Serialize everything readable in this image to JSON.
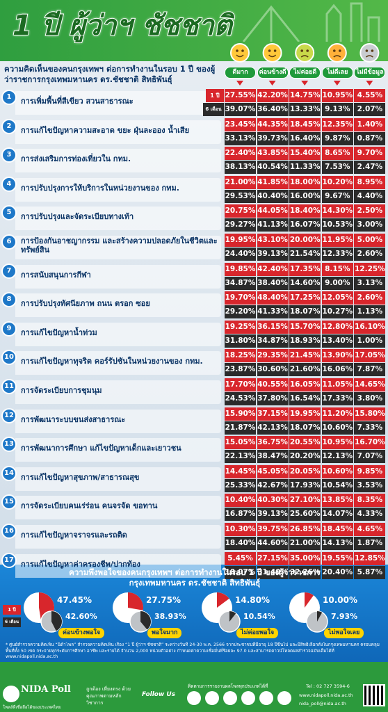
{
  "header": {
    "title": "1 ปี ผู้ว่าฯ ชัชชาติ"
  },
  "table": {
    "subtitle": "ความคิดเห็นของคนกรุงเทพฯ ต่อการทำงานในรอบ 1 ปี ของผู้ว่าราชการกรุงเทพมหานคร ดร.ชัชชาติ สิทธิพันธุ์",
    "columns": [
      "ดีมาก",
      "ค่อนข้างดี",
      "ไม่ค่อยดี",
      "ไม่ดีเลย",
      "ไม่มีข้อมูล"
    ],
    "period_labels": [
      "1 ปี",
      "6 เดือน"
    ],
    "rows": [
      {
        "no": "1",
        "topic": "การเพิ่มพื้นที่สีเขียว สวนสาธารณะ",
        "year": [
          "27.55%",
          "42.20%",
          "14.75%",
          "10.95%",
          "4.55%"
        ],
        "half": [
          "39.07%",
          "36.40%",
          "13.33%",
          "9.13%",
          "2.07%"
        ]
      },
      {
        "no": "2",
        "topic": "การแก้ไขปัญหาความสะอาด ขยะ ฝุ่นละออง น้ำเสีย",
        "year": [
          "23.45%",
          "44.35%",
          "18.45%",
          "12.35%",
          "1.40%"
        ],
        "half": [
          "33.13%",
          "39.73%",
          "16.40%",
          "9.87%",
          "0.87%"
        ]
      },
      {
        "no": "3",
        "topic": "การส่งเสริมการท่องเที่ยวใน กทม.",
        "year": [
          "22.40%",
          "43.85%",
          "15.40%",
          "8.65%",
          "9.70%"
        ],
        "half": [
          "38.13%",
          "40.54%",
          "11.33%",
          "7.53%",
          "2.47%"
        ]
      },
      {
        "no": "4",
        "topic": "การปรับปรุงการให้บริการในหน่วยงานของ กทม.",
        "year": [
          "21.00%",
          "41.85%",
          "18.00%",
          "10.20%",
          "8.95%"
        ],
        "half": [
          "29.53%",
          "40.40%",
          "16.00%",
          "9.67%",
          "4.40%"
        ]
      },
      {
        "no": "5",
        "topic": "การปรับปรุงและจัดระเบียบทางเท้า",
        "year": [
          "20.75%",
          "44.05%",
          "18.40%",
          "14.30%",
          "2.50%"
        ],
        "half": [
          "29.27%",
          "41.13%",
          "16.07%",
          "10.53%",
          "3.00%"
        ]
      },
      {
        "no": "6",
        "topic": "การป้องกันอาชญากรรม และสร้างความปลอดภัยในชีวิตและทรัพย์สิน",
        "year": [
          "19.95%",
          "43.10%",
          "20.00%",
          "11.95%",
          "5.00%"
        ],
        "half": [
          "24.40%",
          "39.13%",
          "21.54%",
          "12.33%",
          "2.60%"
        ]
      },
      {
        "no": "7",
        "topic": "การสนับสนุนการกีฬา",
        "year": [
          "19.85%",
          "42.40%",
          "17.35%",
          "8.15%",
          "12.25%"
        ],
        "half": [
          "34.87%",
          "38.40%",
          "14.60%",
          "9.00%",
          "3.13%"
        ]
      },
      {
        "no": "8",
        "topic": "การปรับปรุงทัศนียภาพ ถนน ตรอก ซอย",
        "year": [
          "19.70%",
          "48.40%",
          "17.25%",
          "12.05%",
          "2.60%"
        ],
        "half": [
          "29.20%",
          "41.33%",
          "18.07%",
          "10.27%",
          "1.13%"
        ]
      },
      {
        "no": "9",
        "topic": "การแก้ไขปัญหาน้ำท่วม",
        "year": [
          "19.25%",
          "36.15%",
          "15.70%",
          "12.80%",
          "16.10%"
        ],
        "half": [
          "31.80%",
          "34.87%",
          "18.93%",
          "13.40%",
          "1.00%"
        ]
      },
      {
        "no": "10",
        "topic": "การแก้ไขปัญหาทุจริต คอร์รัปชันในหน่วยงานของ กทม.",
        "year": [
          "18.25%",
          "29.35%",
          "21.45%",
          "13.90%",
          "17.05%"
        ],
        "half": [
          "23.87%",
          "30.60%",
          "21.60%",
          "16.06%",
          "7.87%"
        ]
      },
      {
        "no": "11",
        "topic": "การจัดระเบียบการชุมนุม",
        "year": [
          "17.70%",
          "40.55%",
          "16.05%",
          "11.05%",
          "14.65%"
        ],
        "half": [
          "24.53%",
          "37.80%",
          "16.54%",
          "17.33%",
          "3.80%"
        ]
      },
      {
        "no": "12",
        "topic": "การพัฒนาระบบขนส่งสาธารณะ",
        "year": [
          "15.90%",
          "37.15%",
          "19.95%",
          "11.20%",
          "15.80%"
        ],
        "half": [
          "21.87%",
          "42.13%",
          "18.07%",
          "10.60%",
          "7.33%"
        ]
      },
      {
        "no": "13",
        "topic": "การพัฒนาการศึกษา แก้ไขปัญหาเด็กและเยาวชน",
        "year": [
          "15.05%",
          "36.75%",
          "20.55%",
          "10.95%",
          "16.70%"
        ],
        "half": [
          "22.13%",
          "38.47%",
          "20.20%",
          "12.13%",
          "7.07%"
        ]
      },
      {
        "no": "14",
        "topic": "การแก้ไขปัญหาสุขภาพ/สาธารณสุข",
        "year": [
          "14.45%",
          "45.05%",
          "20.05%",
          "10.60%",
          "9.85%"
        ],
        "half": [
          "25.33%",
          "42.67%",
          "17.93%",
          "10.54%",
          "3.53%"
        ]
      },
      {
        "no": "15",
        "topic": "การจัดระเบียบคนเร่ร่อน คนจรจัด ขอทาน",
        "year": [
          "10.40%",
          "40.30%",
          "27.10%",
          "13.85%",
          "8.35%"
        ],
        "half": [
          "16.87%",
          "39.13%",
          "25.60%",
          "14.07%",
          "4.33%"
        ]
      },
      {
        "no": "16",
        "topic": "การแก้ไขปัญหาจราจรและรถติด",
        "year": [
          "10.30%",
          "39.75%",
          "26.85%",
          "18.45%",
          "4.65%"
        ],
        "half": [
          "18.40%",
          "44.60%",
          "21.00%",
          "14.13%",
          "1.87%"
        ]
      },
      {
        "no": "17",
        "topic": "การแก้ไขปัญหาค่าครองชีพ/ปากท้อง",
        "year": [
          "5.45%",
          "27.15%",
          "35.00%",
          "19.55%",
          "12.85%"
        ],
        "half": [
          "10.07%",
          "31.40%",
          "32.26%",
          "20.40%",
          "5.87%"
        ]
      }
    ]
  },
  "satisfaction": {
    "title": "ความพึงพอใจของคนกรุงเทพฯ ต่อการทำงานในรอบ 1 ปี ของผู้ว่าราชการกรุงเทพมหานคร ดร.ชัชชาติ สิทธิพันธุ์",
    "period_labels": [
      "1 ปี",
      "6 เดือน"
    ],
    "items": [
      {
        "name": "ค่อนข้างพอใจ",
        "values": [
          47.45,
          42.6
        ],
        "value_labels": [
          "47.45%",
          "42.60%"
        ]
      },
      {
        "name": "พอใจมาก",
        "values": [
          27.75,
          38.93
        ],
        "value_labels": [
          "27.75%",
          "38.93%"
        ]
      },
      {
        "name": "ไม่ค่อยพอใจ",
        "values": [
          14.8,
          10.54
        ],
        "value_labels": [
          "14.80%",
          "10.54%"
        ]
      },
      {
        "name": "ไม่พอใจเลย",
        "values": [
          10.0,
          7.93
        ],
        "value_labels": [
          "10.00%",
          "7.93%"
        ]
      }
    ],
    "note": "* ศูนย์สำรวจความคิดเห็น “นิด้าโพล” สำรวจความคิดเห็น เรื่อง “1 ปี ผู้ว่าฯ ชัชชาติ” ระหว่างวันที่ 24-30 พ.ค. 2566 จากประชาชนที่มีอายุ 18 ปีขึ้นไป และมีสิทธิเลือกตั้งในกรุงเทพมหานคร ครอบคลุมพื้นที่ทั้ง 50 เขต กระจายทุกระดับการศึกษา อาชีพ และรายได้ จำนวน 2,000 หน่วยตัวอย่าง กำหนดค่าความเชื่อมั่นที่ร้อยละ 97.0 และสามารถดาวน์โหลดผลสำรวจฉบับเต็มได้ที่ www.nidapoll.nida.ac.th"
  },
  "footer": {
    "brand": "NIDA Poll",
    "brand_sub": "โพลล์ที่เชื่อถือได้ของประเทศไทย",
    "motto": "ถูกต้อง เที่ยงตรง ด้วยคุณภาพตามหลักวิชาการ",
    "follow": "Follow Us",
    "follow_note": "ติดตามการรายงานผลโพลทุกประเภทได้ที่",
    "tel": "Tel : 02 727 3594-6",
    "web": "www.nidapoll.nida.ac.th",
    "email": "nida_poll@nida.ac.th"
  }
}
